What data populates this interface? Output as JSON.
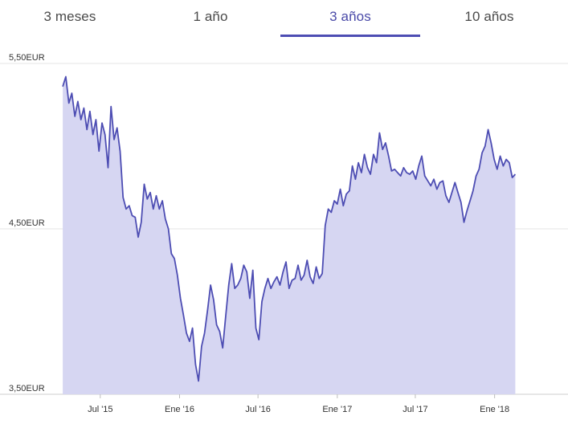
{
  "tabs": [
    {
      "label": "3 meses",
      "active": false
    },
    {
      "label": "1 año",
      "active": false
    },
    {
      "label": "3 años",
      "active": true
    },
    {
      "label": "10 años",
      "active": false
    }
  ],
  "colors": {
    "line": "#4d4db3",
    "fill": "#d6d6f2",
    "active_tab": "#4d4db3",
    "grid": "#e6e6e6"
  },
  "chart_data": {
    "type": "area",
    "title": "",
    "xlabel": "",
    "ylabel": "",
    "ylim": [
      3.5,
      5.5
    ],
    "y_ticks": [
      {
        "value": 5.5,
        "label": "5,50EUR"
      },
      {
        "value": 4.5,
        "label": "4,50EUR"
      },
      {
        "value": 3.5,
        "label": "3,50EUR"
      }
    ],
    "x_range": [
      "2015-04-01",
      "2018-05-01"
    ],
    "x_ticks": [
      {
        "date": "2015-07-01",
        "label": "Jul '15"
      },
      {
        "date": "2016-01-01",
        "label": "Ene '16"
      },
      {
        "date": "2016-07-01",
        "label": "Jul '16"
      },
      {
        "date": "2017-01-01",
        "label": "Ene '17"
      },
      {
        "date": "2017-07-01",
        "label": "Jul '17"
      },
      {
        "date": "2018-01-01",
        "label": "Ene '18"
      }
    ],
    "series": [
      {
        "points": [
          [
            "2015-04-05",
            5.36
          ],
          [
            "2015-04-12",
            5.42
          ],
          [
            "2015-04-19",
            5.26
          ],
          [
            "2015-04-26",
            5.32
          ],
          [
            "2015-05-03",
            5.18
          ],
          [
            "2015-05-10",
            5.27
          ],
          [
            "2015-05-17",
            5.16
          ],
          [
            "2015-05-24",
            5.23
          ],
          [
            "2015-05-31",
            5.1
          ],
          [
            "2015-06-07",
            5.21
          ],
          [
            "2015-06-14",
            5.07
          ],
          [
            "2015-06-21",
            5.16
          ],
          [
            "2015-06-28",
            4.97
          ],
          [
            "2015-07-05",
            5.14
          ],
          [
            "2015-07-12",
            5.07
          ],
          [
            "2015-07-19",
            4.87
          ],
          [
            "2015-07-26",
            5.24
          ],
          [
            "2015-08-02",
            5.04
          ],
          [
            "2015-08-09",
            5.11
          ],
          [
            "2015-08-16",
            4.97
          ],
          [
            "2015-08-23",
            4.69
          ],
          [
            "2015-08-30",
            4.62
          ],
          [
            "2015-09-06",
            4.64
          ],
          [
            "2015-09-13",
            4.58
          ],
          [
            "2015-09-20",
            4.57
          ],
          [
            "2015-09-27",
            4.45
          ],
          [
            "2015-10-04",
            4.54
          ],
          [
            "2015-10-11",
            4.77
          ],
          [
            "2015-10-18",
            4.68
          ],
          [
            "2015-10-25",
            4.72
          ],
          [
            "2015-11-01",
            4.62
          ],
          [
            "2015-11-08",
            4.7
          ],
          [
            "2015-11-15",
            4.62
          ],
          [
            "2015-11-22",
            4.67
          ],
          [
            "2015-11-29",
            4.56
          ],
          [
            "2015-12-06",
            4.5
          ],
          [
            "2015-12-13",
            4.35
          ],
          [
            "2015-12-20",
            4.32
          ],
          [
            "2015-12-27",
            4.22
          ],
          [
            "2016-01-03",
            4.08
          ],
          [
            "2016-01-10",
            3.98
          ],
          [
            "2016-01-17",
            3.87
          ],
          [
            "2016-01-24",
            3.82
          ],
          [
            "2016-01-31",
            3.9
          ],
          [
            "2016-02-07",
            3.68
          ],
          [
            "2016-02-14",
            3.58
          ],
          [
            "2016-02-21",
            3.79
          ],
          [
            "2016-02-28",
            3.87
          ],
          [
            "2016-03-06",
            4.01
          ],
          [
            "2016-03-13",
            4.16
          ],
          [
            "2016-03-20",
            4.07
          ],
          [
            "2016-03-27",
            3.92
          ],
          [
            "2016-04-03",
            3.88
          ],
          [
            "2016-04-10",
            3.78
          ],
          [
            "2016-04-17",
            3.97
          ],
          [
            "2016-04-24",
            4.16
          ],
          [
            "2016-05-01",
            4.29
          ],
          [
            "2016-05-08",
            4.14
          ],
          [
            "2016-05-15",
            4.16
          ],
          [
            "2016-05-22",
            4.2
          ],
          [
            "2016-05-29",
            4.28
          ],
          [
            "2016-06-05",
            4.24
          ],
          [
            "2016-06-12",
            4.08
          ],
          [
            "2016-06-19",
            4.25
          ],
          [
            "2016-06-26",
            3.9
          ],
          [
            "2016-07-03",
            3.83
          ],
          [
            "2016-07-10",
            4.06
          ],
          [
            "2016-07-17",
            4.14
          ],
          [
            "2016-07-24",
            4.2
          ],
          [
            "2016-07-31",
            4.14
          ],
          [
            "2016-08-07",
            4.18
          ],
          [
            "2016-08-14",
            4.21
          ],
          [
            "2016-08-21",
            4.16
          ],
          [
            "2016-08-28",
            4.24
          ],
          [
            "2016-09-04",
            4.3
          ],
          [
            "2016-09-11",
            4.14
          ],
          [
            "2016-09-18",
            4.19
          ],
          [
            "2016-09-25",
            4.2
          ],
          [
            "2016-10-02",
            4.28
          ],
          [
            "2016-10-09",
            4.19
          ],
          [
            "2016-10-16",
            4.22
          ],
          [
            "2016-10-23",
            4.31
          ],
          [
            "2016-10-30",
            4.21
          ],
          [
            "2016-11-06",
            4.17
          ],
          [
            "2016-11-13",
            4.27
          ],
          [
            "2016-11-20",
            4.2
          ],
          [
            "2016-11-27",
            4.23
          ],
          [
            "2016-12-04",
            4.52
          ],
          [
            "2016-12-11",
            4.62
          ],
          [
            "2016-12-18",
            4.6
          ],
          [
            "2016-12-25",
            4.67
          ],
          [
            "2017-01-01",
            4.65
          ],
          [
            "2017-01-08",
            4.74
          ],
          [
            "2017-01-15",
            4.64
          ],
          [
            "2017-01-22",
            4.71
          ],
          [
            "2017-01-29",
            4.73
          ],
          [
            "2017-02-05",
            4.88
          ],
          [
            "2017-02-12",
            4.8
          ],
          [
            "2017-02-19",
            4.9
          ],
          [
            "2017-02-26",
            4.84
          ],
          [
            "2017-03-05",
            4.95
          ],
          [
            "2017-03-12",
            4.87
          ],
          [
            "2017-03-19",
            4.83
          ],
          [
            "2017-03-26",
            4.95
          ],
          [
            "2017-04-02",
            4.9
          ],
          [
            "2017-04-09",
            5.08
          ],
          [
            "2017-04-16",
            4.98
          ],
          [
            "2017-04-23",
            5.02
          ],
          [
            "2017-04-30",
            4.94
          ],
          [
            "2017-05-07",
            4.85
          ],
          [
            "2017-05-14",
            4.86
          ],
          [
            "2017-05-21",
            4.84
          ],
          [
            "2017-05-28",
            4.82
          ],
          [
            "2017-06-04",
            4.87
          ],
          [
            "2017-06-11",
            4.84
          ],
          [
            "2017-06-18",
            4.83
          ],
          [
            "2017-06-25",
            4.85
          ],
          [
            "2017-07-02",
            4.8
          ],
          [
            "2017-07-09",
            4.88
          ],
          [
            "2017-07-16",
            4.94
          ],
          [
            "2017-07-23",
            4.82
          ],
          [
            "2017-07-30",
            4.79
          ],
          [
            "2017-08-06",
            4.76
          ],
          [
            "2017-08-13",
            4.8
          ],
          [
            "2017-08-20",
            4.74
          ],
          [
            "2017-08-27",
            4.78
          ],
          [
            "2017-09-03",
            4.79
          ],
          [
            "2017-09-10",
            4.7
          ],
          [
            "2017-09-17",
            4.66
          ],
          [
            "2017-09-24",
            4.72
          ],
          [
            "2017-10-01",
            4.78
          ],
          [
            "2017-10-08",
            4.72
          ],
          [
            "2017-10-15",
            4.66
          ],
          [
            "2017-10-22",
            4.54
          ],
          [
            "2017-10-29",
            4.61
          ],
          [
            "2017-11-05",
            4.67
          ],
          [
            "2017-11-12",
            4.73
          ],
          [
            "2017-11-19",
            4.82
          ],
          [
            "2017-11-26",
            4.86
          ],
          [
            "2017-12-03",
            4.96
          ],
          [
            "2017-12-10",
            5.0
          ],
          [
            "2017-12-17",
            5.1
          ],
          [
            "2017-12-24",
            5.02
          ],
          [
            "2017-12-31",
            4.92
          ],
          [
            "2018-01-07",
            4.86
          ],
          [
            "2018-01-14",
            4.94
          ],
          [
            "2018-01-21",
            4.88
          ],
          [
            "2018-01-28",
            4.92
          ],
          [
            "2018-02-04",
            4.9
          ],
          [
            "2018-02-11",
            4.81
          ],
          [
            "2018-02-18",
            4.83
          ]
        ]
      }
    ]
  }
}
